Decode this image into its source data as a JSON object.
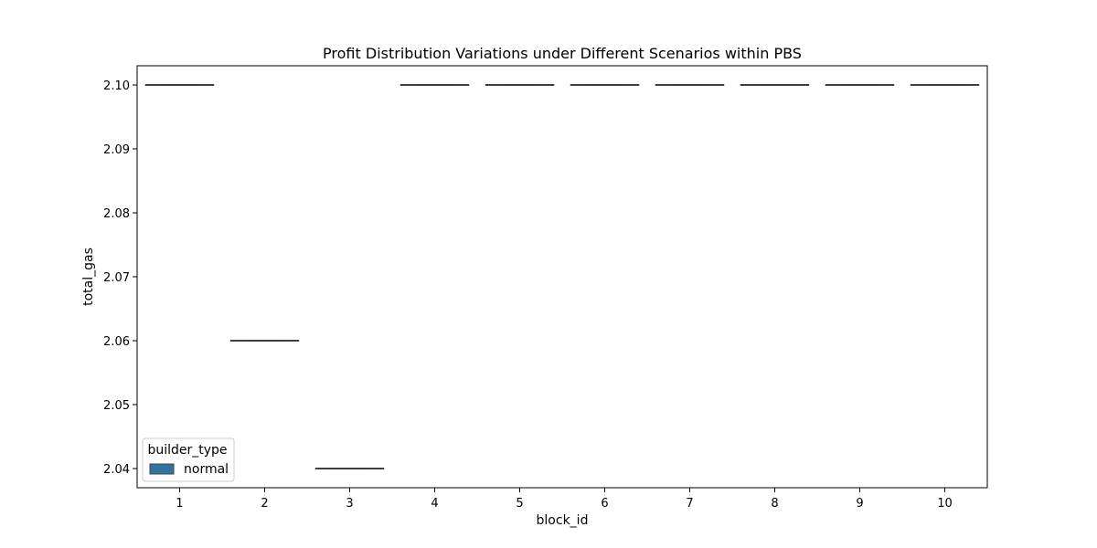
{
  "chart_data": {
    "type": "box",
    "title": "Profit Distribution Variations under Different Scenarios within PBS",
    "xlabel": "block_id",
    "ylabel": "total_gas",
    "categories": [
      "1",
      "2",
      "3",
      "4",
      "5",
      "6",
      "7",
      "8",
      "9",
      "10"
    ],
    "series": [
      {
        "name": "normal",
        "values": [
          2.1,
          2.06,
          2.04,
          2.1,
          2.1,
          2.1,
          2.1,
          2.1,
          2.1,
          2.1
        ],
        "color": "#3274a1"
      }
    ],
    "y_ticks": [
      "2.04",
      "2.05",
      "2.06",
      "2.07",
      "2.08",
      "2.09",
      "2.10"
    ],
    "ylim": [
      2.037,
      2.103
    ],
    "grid": false,
    "legend": {
      "title": "builder_type",
      "placement": "lower-left"
    }
  }
}
